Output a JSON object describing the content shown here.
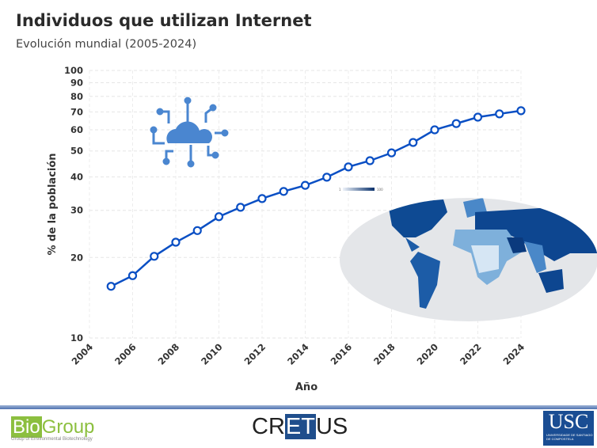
{
  "header": {
    "title": "Individuos que utilizan Internet",
    "subtitle": "Evolución mundial (2005-2024)"
  },
  "chart_data": {
    "type": "line",
    "title": "Individuos que utilizan Internet",
    "subtitle": "Evolución mundial (2005-2024)",
    "xlabel": "Año",
    "ylabel": "% de la población",
    "yscale": "log",
    "ylim": [
      10,
      100
    ],
    "xlim": [
      2004,
      2024
    ],
    "grid": true,
    "color": "#0a4fc4",
    "x_ticks": [
      "2004",
      "2006",
      "2008",
      "2010",
      "2012",
      "2014",
      "2016",
      "2018",
      "2020",
      "2022",
      "2024"
    ],
    "y_ticks": [
      "10",
      "20",
      "30",
      "40",
      "50",
      "60",
      "70",
      "80",
      "90",
      "100"
    ],
    "x": [
      2005,
      2006,
      2007,
      2008,
      2009,
      2010,
      2011,
      2012,
      2013,
      2014,
      2015,
      2016,
      2017,
      2018,
      2019,
      2020,
      2021,
      2022,
      2023,
      2024
    ],
    "values": [
      15.6,
      17.1,
      20.2,
      22.8,
      25.2,
      28.4,
      30.8,
      33.2,
      35.3,
      37.2,
      39.9,
      43.6,
      46.0,
      49.2,
      53.8,
      60.0,
      63.3,
      66.9,
      68.8,
      70.7
    ]
  },
  "map": {
    "legend_min": "1",
    "legend_max": "100",
    "colors": [
      "#eef3fa",
      "#08306b"
    ]
  },
  "icons": {
    "cloud": "cloud-network-icon"
  },
  "footer": {
    "logo1": "BioGroup",
    "logo1_bio": "Bio",
    "logo1_group": "Group",
    "logo1_sub": "Group of Environmental Biotechnology",
    "logo2_pre": "CR",
    "logo2_et": "ET",
    "logo2_post": "US",
    "logo3": "USC",
    "logo3_sub": "UNIVERSIDADE DE SANTIAGO DE COMPOSTELA"
  }
}
